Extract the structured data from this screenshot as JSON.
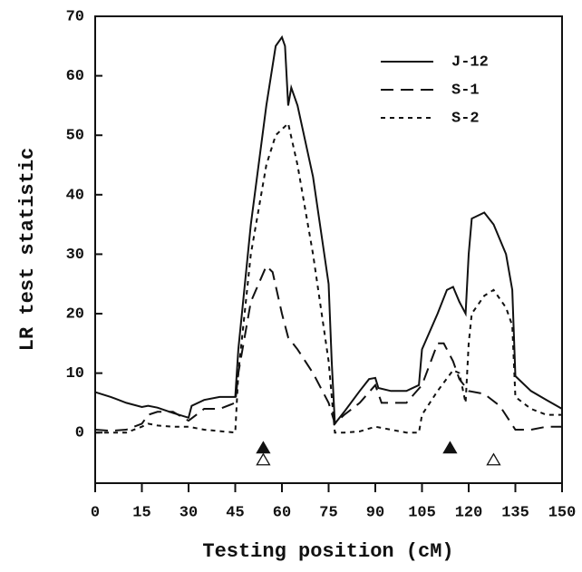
{
  "chart_data": {
    "type": "line",
    "xlabel": "Testing position (cM)",
    "ylabel": "LR test statistic",
    "xlim": [
      0,
      150
    ],
    "ylim": [
      -8.5,
      70
    ],
    "xticks": [
      0,
      15,
      30,
      45,
      60,
      75,
      90,
      105,
      120,
      135,
      150
    ],
    "yticks": [
      0,
      10,
      20,
      30,
      40,
      50,
      60,
      70
    ],
    "legend": "upper right",
    "series": [
      {
        "name": "J-12",
        "color": "#111111",
        "dash": "solid",
        "x": [
          0,
          5,
          10,
          15,
          17,
          20,
          25,
          30,
          31,
          35,
          40,
          45,
          46,
          50,
          55,
          58,
          60,
          61,
          62,
          63,
          65,
          70,
          75,
          76,
          77,
          80,
          85,
          88,
          90,
          91,
          95,
          100,
          104,
          105,
          110,
          113,
          115,
          117,
          119,
          120,
          121,
          125,
          128,
          132,
          134,
          135,
          140,
          145,
          150
        ],
        "values": [
          6.8,
          6,
          5,
          4.3,
          4.5,
          4.2,
          3.3,
          2.5,
          4.5,
          5.5,
          6,
          6,
          14,
          35,
          55,
          65,
          66.5,
          65,
          55,
          58,
          55,
          43,
          25,
          12,
          1.5,
          3.5,
          7,
          9,
          9.2,
          7.5,
          7,
          7,
          8,
          14,
          20,
          24,
          24.5,
          22,
          20,
          30,
          36,
          37,
          35,
          30,
          24,
          9.5,
          7,
          5.5,
          4
        ]
      },
      {
        "name": "S-1",
        "color": "#111111",
        "dash": "long",
        "x": [
          0,
          5,
          10,
          15,
          17,
          20,
          25,
          30,
          35,
          40,
          45,
          46,
          50,
          55,
          57,
          60,
          62,
          65,
          70,
          75,
          77,
          80,
          85,
          90,
          92,
          100,
          105,
          110,
          112,
          115,
          117,
          120,
          125,
          130,
          135,
          140,
          145,
          150
        ],
        "values": [
          0.5,
          0.3,
          0.5,
          1.5,
          3,
          3.5,
          3.5,
          2,
          4,
          4,
          5,
          10,
          22,
          28,
          27,
          20,
          16,
          14,
          10,
          5,
          1.5,
          3,
          5,
          8,
          5,
          5,
          8,
          15,
          15,
          12,
          9,
          7,
          6.5,
          4.5,
          0.5,
          0.5,
          1,
          1
        ]
      },
      {
        "name": "S-2",
        "color": "#111111",
        "dash": "short",
        "x": [
          0,
          5,
          10,
          15,
          17,
          20,
          25,
          30,
          35,
          45,
          46,
          50,
          55,
          58,
          60,
          62,
          65,
          70,
          75,
          77,
          80,
          85,
          90,
          95,
          100,
          104,
          105,
          110,
          115,
          117,
          119,
          120,
          121,
          125,
          128,
          132,
          134,
          135,
          140,
          145,
          150
        ],
        "values": [
          0,
          0,
          0,
          1,
          1.5,
          1.2,
          1,
          1,
          0.5,
          0,
          10,
          30,
          45,
          50,
          51,
          52,
          45,
          30,
          12,
          0,
          0,
          0.2,
          1,
          0.5,
          0,
          0,
          3,
          7,
          10.5,
          10,
          5,
          15,
          20,
          23,
          24,
          21,
          18,
          6,
          4,
          3,
          3
        ]
      }
    ],
    "markers": [
      {
        "shape": "filled-triangle",
        "x": [
          54,
          114
        ],
        "y": [
          -2.5,
          -2.5
        ]
      },
      {
        "shape": "open-triangle",
        "x": [
          54,
          128
        ],
        "y": [
          -4.5,
          -4.5
        ]
      }
    ]
  }
}
